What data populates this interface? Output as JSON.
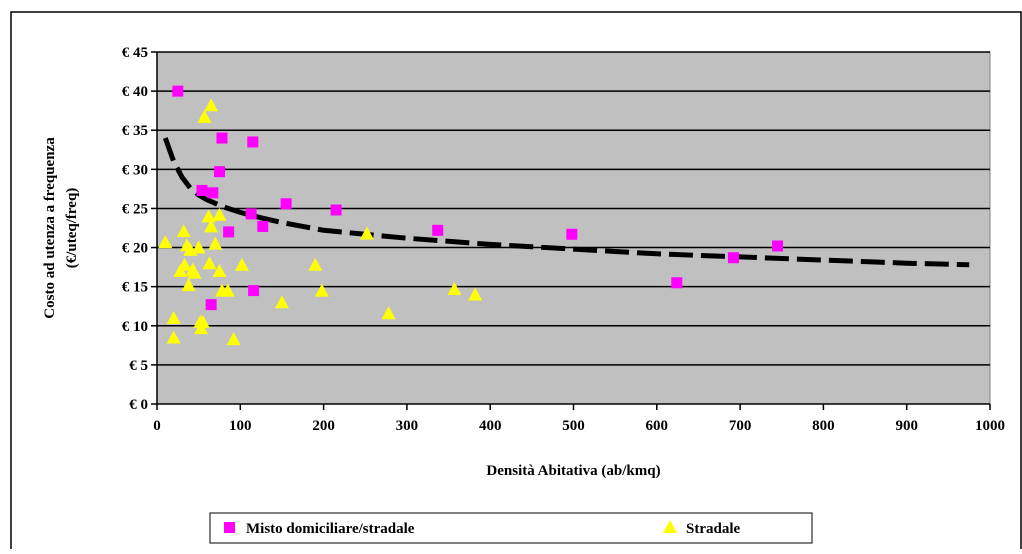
{
  "chart_data": {
    "type": "scatter",
    "title": "",
    "xlabel": "Densità Abitativa (ab/kmq)",
    "ylabel_line1": "Costo ad utenza a frequenza",
    "ylabel_line2": "(€/uteq/freq)",
    "xlim": [
      0,
      1000
    ],
    "ylim": [
      0,
      45
    ],
    "x_ticks": [
      0,
      100,
      200,
      300,
      400,
      500,
      600,
      700,
      800,
      900,
      1000
    ],
    "y_ticks": [
      0,
      5,
      10,
      15,
      20,
      25,
      30,
      35,
      40,
      45
    ],
    "y_tick_labels": [
      "€ 0",
      "€ 5",
      "€ 10",
      "€ 15",
      "€ 20",
      "€ 25",
      "€ 30",
      "€ 35",
      "€ 40",
      "€ 45"
    ],
    "grid": "horizontal",
    "plot_background": "#c0c0c0",
    "legend_position": "bottom-center",
    "series": [
      {
        "name": "Misto domiciliare/stradale",
        "marker": "square",
        "color": "#ff00ff",
        "points": [
          [
            25,
            40
          ],
          [
            54,
            27.3
          ],
          [
            67,
            27
          ],
          [
            75,
            29.7
          ],
          [
            78,
            34
          ],
          [
            115,
            33.5
          ],
          [
            86,
            22
          ],
          [
            113,
            24.3
          ],
          [
            127,
            22.7
          ],
          [
            155,
            25.6
          ],
          [
            215,
            24.8
          ],
          [
            337,
            22.2
          ],
          [
            498,
            21.7
          ],
          [
            65,
            12.7
          ],
          [
            116,
            14.5
          ],
          [
            624,
            15.5
          ],
          [
            692,
            18.7
          ],
          [
            745,
            20.2
          ]
        ]
      },
      {
        "name": "Stradale",
        "marker": "triangle",
        "color": "#ffff00",
        "points": [
          [
            10,
            20.7
          ],
          [
            20,
            11
          ],
          [
            20,
            8.5
          ],
          [
            28,
            17
          ],
          [
            32,
            22.1
          ],
          [
            33,
            17.8
          ],
          [
            36,
            20.3
          ],
          [
            38,
            15.2
          ],
          [
            40,
            19.7
          ],
          [
            43,
            17.2
          ],
          [
            45,
            16.8
          ],
          [
            50,
            20
          ],
          [
            52,
            10.5
          ],
          [
            53,
            9.7
          ],
          [
            55,
            10.5
          ],
          [
            57,
            36.7
          ],
          [
            62,
            24
          ],
          [
            63,
            18
          ],
          [
            65,
            22.7
          ],
          [
            65,
            38.2
          ],
          [
            70,
            20.5
          ],
          [
            75,
            17
          ],
          [
            75,
            24.2
          ],
          [
            78,
            14.5
          ],
          [
            85,
            14.5
          ],
          [
            92,
            8.3
          ],
          [
            102,
            17.8
          ],
          [
            150,
            13
          ],
          [
            190,
            17.8
          ],
          [
            198,
            14.5
          ],
          [
            252,
            21.8
          ],
          [
            278,
            11.6
          ],
          [
            357,
            14.7
          ],
          [
            382,
            14
          ]
        ]
      }
    ],
    "trendline": {
      "style": "dashed",
      "color": "#000000",
      "points": [
        [
          10,
          34
        ],
        [
          20,
          31
        ],
        [
          30,
          29
        ],
        [
          40,
          27.6
        ],
        [
          50,
          26.7
        ],
        [
          60,
          26.1
        ],
        [
          80,
          25.2
        ],
        [
          100,
          24.5
        ],
        [
          125,
          23.8
        ],
        [
          150,
          23.2
        ],
        [
          175,
          22.7
        ],
        [
          200,
          22.2
        ],
        [
          250,
          21.7
        ],
        [
          300,
          21.2
        ],
        [
          350,
          20.8
        ],
        [
          400,
          20.4
        ],
        [
          450,
          20.1
        ],
        [
          500,
          19.8
        ],
        [
          550,
          19.5
        ],
        [
          600,
          19.2
        ],
        [
          650,
          19.0
        ],
        [
          700,
          18.8
        ],
        [
          750,
          18.6
        ],
        [
          800,
          18.4
        ],
        [
          850,
          18.2
        ],
        [
          900,
          18.0
        ],
        [
          975,
          17.8
        ]
      ]
    }
  }
}
